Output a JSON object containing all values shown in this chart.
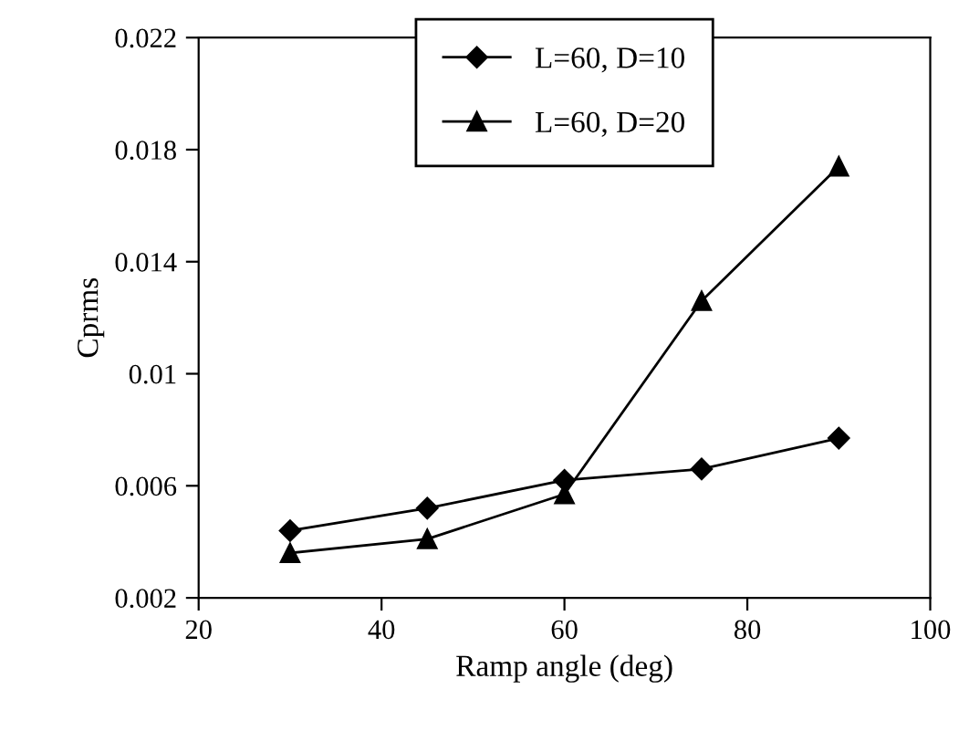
{
  "chart_data": {
    "type": "line",
    "xlabel": "Ramp angle (deg)",
    "ylabel": "Cprms",
    "x": [
      30,
      45,
      60,
      75,
      90
    ],
    "series": [
      {
        "name": "L=60, D=10",
        "color": "#000000",
        "marker": "diamond",
        "values": [
          0.0044,
          0.0052,
          0.0062,
          0.0066,
          0.0077
        ]
      },
      {
        "name": "L=60, D=20",
        "color": "#000000",
        "marker": "triangle",
        "values": [
          0.0036,
          0.0041,
          0.0057,
          0.0126,
          0.0174
        ]
      }
    ],
    "xlim": [
      20,
      100
    ],
    "xticks": [
      20,
      40,
      60,
      80,
      100
    ],
    "ylim": [
      0.002,
      0.022
    ],
    "yticks": [
      0.002,
      0.006,
      0.01,
      0.014,
      0.018,
      0.022
    ],
    "grid": false,
    "legend": "top",
    "line_style": "solid"
  }
}
